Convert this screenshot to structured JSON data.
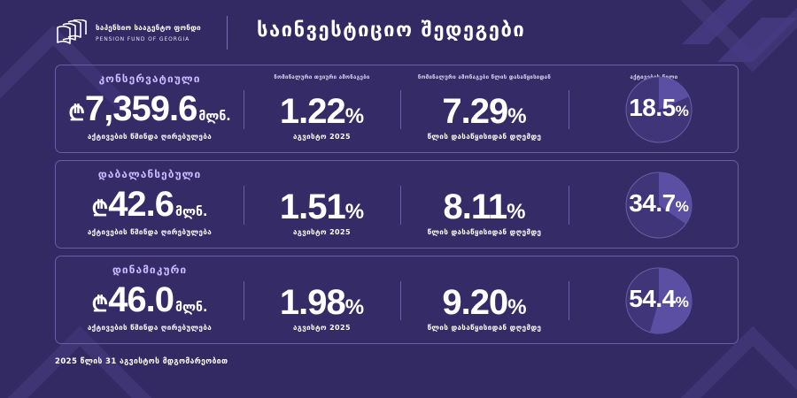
{
  "colors": {
    "background": "#332a63",
    "panel_border": "#6a5ea6",
    "accent": "#c9b9ff",
    "pie_base": "#3f3578",
    "pie_fill": "#5a4fa3",
    "text": "#ffffff"
  },
  "logo": {
    "name_ka": "საპენსიო სააგენტო ფონდი",
    "name_en": "PENSION FUND OF GEORGIA",
    "icon": "pension-fund-logo-icon"
  },
  "header": {
    "title": "საინვესტიციო შედეგები"
  },
  "columns": {
    "nominal_head": "ნომინალური თვიური ამონაგები",
    "annual_head": "ნომინალური ამონაგები წლის დასაწყისიდან",
    "share_head": "აქტივების წილი"
  },
  "funds": [
    {
      "name": "კონსერვატიული",
      "currency_symbol": "₾",
      "assets_value": "7,359.6",
      "assets_unit": "მლნ.",
      "assets_caption": "აქტივების წმინდა ღირებულება",
      "monthly_return": "1.22",
      "monthly_caption": "აგვისტო 2025",
      "ytd_return": "7.29",
      "ytd_caption": "წლის დასაწყისიდან დღემდე",
      "share_percent": 18.5,
      "share_label": "18.5",
      "percent_sign": "%"
    },
    {
      "name": "დაბალანსებული",
      "currency_symbol": "₾",
      "assets_value": "42.6",
      "assets_unit": "მლნ.",
      "assets_caption": "აქტივების წმინდა ღირებულება",
      "monthly_return": "1.51",
      "monthly_caption": "აგვისტო 2025",
      "ytd_return": "8.11",
      "ytd_caption": "წლის დასაწყისიდან დღემდე",
      "share_percent": 34.7,
      "share_label": "34.7",
      "percent_sign": "%"
    },
    {
      "name": "დინამიკური",
      "currency_symbol": "₾",
      "assets_value": "46.0",
      "assets_unit": "მლნ.",
      "assets_caption": "აქტივების წმინდა ღირებულება",
      "monthly_return": "1.98",
      "monthly_caption": "აგვისტო 2025",
      "ytd_return": "9.20",
      "ytd_caption": "წლის დასაწყისიდან დღემდე",
      "share_percent": 54.4,
      "share_label": "54.4",
      "percent_sign": "%"
    }
  ],
  "footnote": "2025 წლის 31 აგვისტოს მდგომარეობით"
}
